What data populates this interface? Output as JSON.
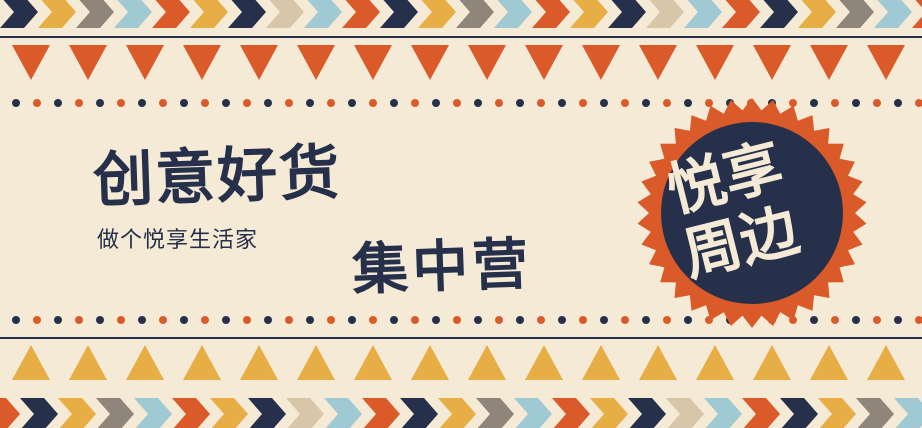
{
  "banner": {
    "headline": "创意好货",
    "subline": "做个悦享生活家",
    "focus": "集中营",
    "badge": {
      "line1": "悦享",
      "line2": "周边"
    }
  },
  "colors": {
    "background": "#f5ead6",
    "navy": "#26304a",
    "orange": "#db5a2a",
    "mustard": "#e7ae45",
    "gray": "#8f857a",
    "light_blue": "#9fcad3",
    "tan": "#d8c6a8"
  }
}
